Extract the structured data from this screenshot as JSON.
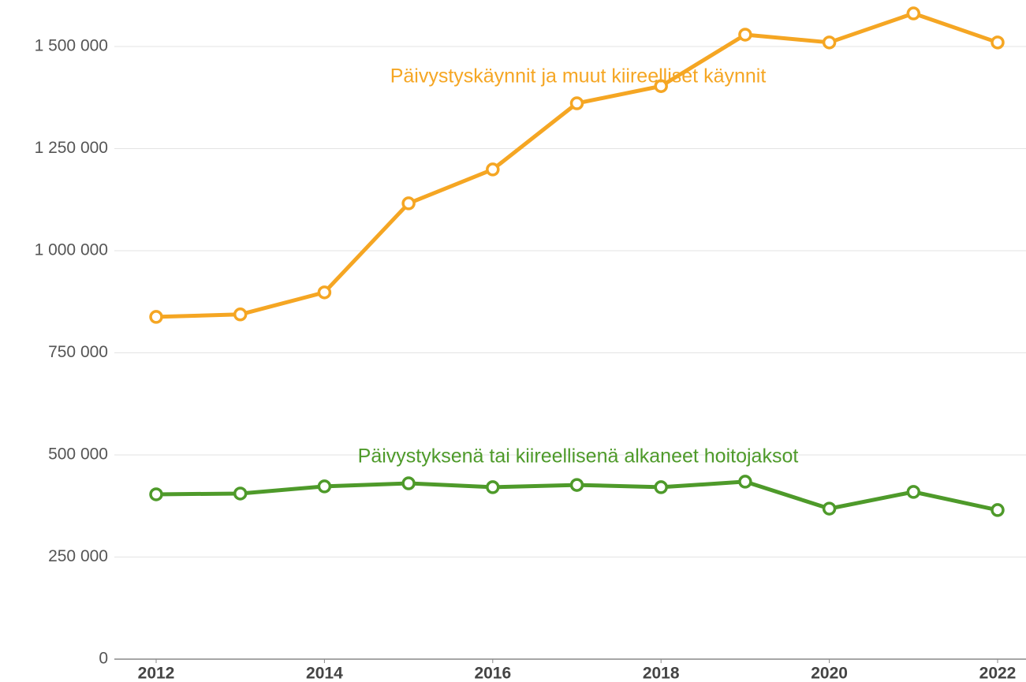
{
  "chart_data": {
    "type": "line",
    "x": [
      2012,
      2013,
      2014,
      2015,
      2016,
      2017,
      2018,
      2019,
      2020,
      2021,
      2022
    ],
    "series": [
      {
        "name": "Päivystyskäynnit ja muut kiireelliset käynnit",
        "color": "#f5a623",
        "values": [
          838000,
          844000,
          898000,
          1116000,
          1199000,
          1361000,
          1403000,
          1529000,
          1510000,
          1581000,
          1510000
        ]
      },
      {
        "name": "Päivystyksenä tai kiireellisenä alkaneet hoitojaksot",
        "color": "#4e9a2a",
        "values": [
          403500,
          405500,
          423000,
          430500,
          421000,
          426500,
          421000,
          434500,
          368500,
          409500,
          365000
        ]
      }
    ],
    "xlim": [
      2012,
      2022
    ],
    "xticks": [
      2012,
      2014,
      2016,
      2018,
      2020,
      2022
    ],
    "ylim": [
      0,
      1600000
    ],
    "yticks": [
      0,
      {
        "value": 250000,
        "label": "250 000"
      },
      {
        "value": 500000,
        "label": "500 000"
      },
      {
        "value": 750000,
        "label": "750 000"
      },
      {
        "value": 1000000,
        "label": "1 000 000"
      },
      {
        "value": 1250000,
        "label": "1 250 000"
      },
      {
        "value": 1500000,
        "label": "1 500 000"
      }
    ],
    "grid": true
  }
}
